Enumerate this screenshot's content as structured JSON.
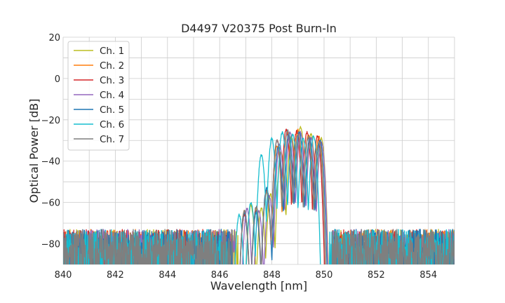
{
  "chart_data": {
    "type": "line",
    "title": "D4497 V20375 Post Burn-In",
    "xlabel": "Wavelength [nm]",
    "ylabel": "Optical Power [dB]",
    "xlim": [
      840,
      855
    ],
    "ylim": [
      -90,
      20
    ],
    "xticks": [
      840,
      842,
      844,
      846,
      848,
      850,
      852,
      854
    ],
    "yticks": [
      20,
      0,
      -20,
      -40,
      -60,
      -80
    ],
    "xtick_labels": [
      "840",
      "842",
      "844",
      "846",
      "848",
      "850",
      "852",
      "854"
    ],
    "ytick_labels": [
      "20",
      "0",
      "−20",
      "−40",
      "−60",
      "−80"
    ],
    "grid": true,
    "legend_position": "top-left",
    "noise_floor_db": -80,
    "series": [
      {
        "name": "Ch. 1",
        "color": "#bcbd22",
        "band": [
          846.7,
          850.4
        ],
        "peaks": [
          [
            847.2,
            -61.5
          ],
          [
            847.6,
            -63
          ],
          [
            847.95,
            -56
          ],
          [
            848.35,
            -36
          ],
          [
            848.75,
            -28
          ],
          [
            849.1,
            -23.5
          ],
          [
            849.5,
            -27
          ],
          [
            849.9,
            -29
          ]
        ]
      },
      {
        "name": "Ch. 2",
        "color": "#ff7f0e",
        "band": [
          846.5,
          850.3
        ],
        "peaks": [
          [
            846.95,
            -64
          ],
          [
            847.4,
            -63
          ],
          [
            847.8,
            -55
          ],
          [
            848.2,
            -33
          ],
          [
            848.6,
            -26
          ],
          [
            849.0,
            -25
          ],
          [
            849.4,
            -27
          ],
          [
            849.8,
            -28
          ]
        ]
      },
      {
        "name": "Ch. 3",
        "color": "#d62728",
        "band": [
          846.5,
          850.3
        ],
        "peaks": [
          [
            846.95,
            -66
          ],
          [
            847.4,
            -64
          ],
          [
            847.8,
            -54
          ],
          [
            848.2,
            -30
          ],
          [
            848.55,
            -25
          ],
          [
            848.95,
            -25.5
          ],
          [
            849.35,
            -26
          ],
          [
            849.75,
            -28
          ]
        ]
      },
      {
        "name": "Ch. 4",
        "color": "#9467bd",
        "band": [
          846.6,
          850.3
        ],
        "peaks": [
          [
            847.05,
            -63
          ],
          [
            847.5,
            -64
          ],
          [
            847.9,
            -57
          ],
          [
            848.3,
            -32
          ],
          [
            848.7,
            -26
          ],
          [
            849.1,
            -26
          ],
          [
            849.5,
            -29
          ],
          [
            849.9,
            -31
          ]
        ]
      },
      {
        "name": "Ch. 5",
        "color": "#1f77b4",
        "band": [
          846.5,
          850.4
        ],
        "peaks": [
          [
            846.95,
            -65
          ],
          [
            847.4,
            -65
          ],
          [
            847.8,
            -53
          ],
          [
            848.25,
            -33
          ],
          [
            848.65,
            -27
          ],
          [
            849.05,
            -26
          ],
          [
            849.45,
            -29
          ],
          [
            849.85,
            -30
          ]
        ]
      },
      {
        "name": "Ch. 6",
        "color": "#17becf",
        "band": [
          846.3,
          850.2
        ],
        "peaks": [
          [
            846.75,
            -66
          ],
          [
            847.2,
            -60
          ],
          [
            847.6,
            -37
          ],
          [
            848.0,
            -29
          ],
          [
            848.4,
            -26
          ],
          [
            848.8,
            -27
          ],
          [
            849.2,
            -29
          ],
          [
            849.6,
            -28
          ]
        ]
      },
      {
        "name": "Ch. 7",
        "color": "#7f7f7f",
        "band": [
          846.5,
          850.3
        ],
        "peaks": [
          [
            846.95,
            -64
          ],
          [
            847.4,
            -62
          ],
          [
            847.8,
            -55
          ],
          [
            848.2,
            -30
          ],
          [
            848.6,
            -25
          ],
          [
            849.0,
            -27
          ],
          [
            849.4,
            -28
          ],
          [
            849.8,
            -31
          ]
        ]
      }
    ]
  }
}
